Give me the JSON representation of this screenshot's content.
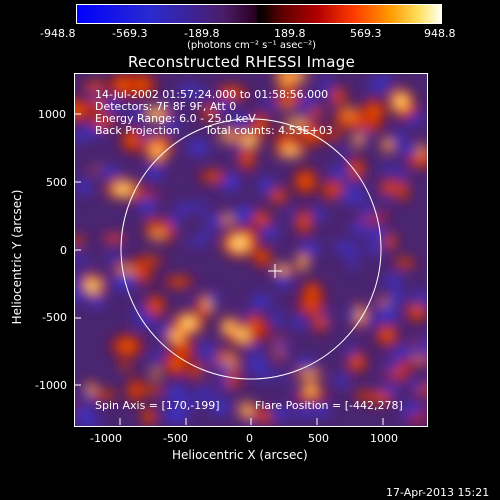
{
  "colorbar": {
    "ticks": [
      "-948.8",
      "-569.3",
      "-189.8",
      "189.8",
      "569.3",
      "948.8"
    ],
    "units": "(photons cm⁻² s⁻¹ asec⁻²)"
  },
  "title": "Reconstructed RHESSI Image",
  "info": {
    "line1": "14-Jul-2002 01:57:24.000 to 01:58:56.000",
    "line2": "Detectors: 7F 8F 9F, Att 0",
    "line3": "Energy Range: 6.0 - 25.0 keV",
    "line4_left": "Back Projection",
    "line4_right": "Total counts: 4.53E+03"
  },
  "footer_left": "Spin Axis = [170,-199]",
  "footer_right": "Flare Position = [-442,278]",
  "axes": {
    "xlabel": "Heliocentric X (arcsec)",
    "ylabel": "Heliocentric Y (arcsec)",
    "xticks": [
      "-1000",
      "-500",
      "0",
      "500",
      "1000"
    ],
    "yticks": [
      "1000",
      "500",
      "0",
      "-500",
      "-1000"
    ]
  },
  "timestamp": "17-Apr-2013 15:21"
}
